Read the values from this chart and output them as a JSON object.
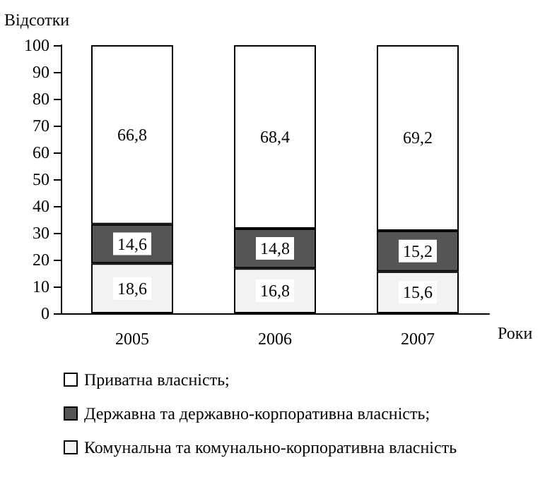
{
  "chart_data": {
    "type": "bar",
    "stacked": true,
    "ylabel": "Відсотки",
    "xlabel": "Роки",
    "categories": [
      "2005",
      "2006",
      "2007"
    ],
    "series": [
      {
        "name": "Комунальна та комунально-корпоративна власність",
        "color": "#f2f2f2",
        "values": [
          18.6,
          16.8,
          15.6
        ],
        "value_labels": [
          "18,6",
          "16,8",
          "15,6"
        ]
      },
      {
        "name": "Державна та державно-корпоративна власність;",
        "color": "#555555",
        "values": [
          14.6,
          14.8,
          15.2
        ],
        "value_labels": [
          "14,6",
          "14,8",
          "15,2"
        ]
      },
      {
        "name": "Приватна власність;",
        "color": "#ffffff",
        "values": [
          66.8,
          68.4,
          69.2
        ],
        "value_labels": [
          "66,8",
          "68,4",
          "69,2"
        ]
      }
    ],
    "ylim": [
      0,
      100
    ],
    "yticks": [
      0,
      10,
      20,
      30,
      40,
      50,
      60,
      70,
      80,
      90,
      100
    ],
    "grid": false,
    "legend": "bottom"
  }
}
